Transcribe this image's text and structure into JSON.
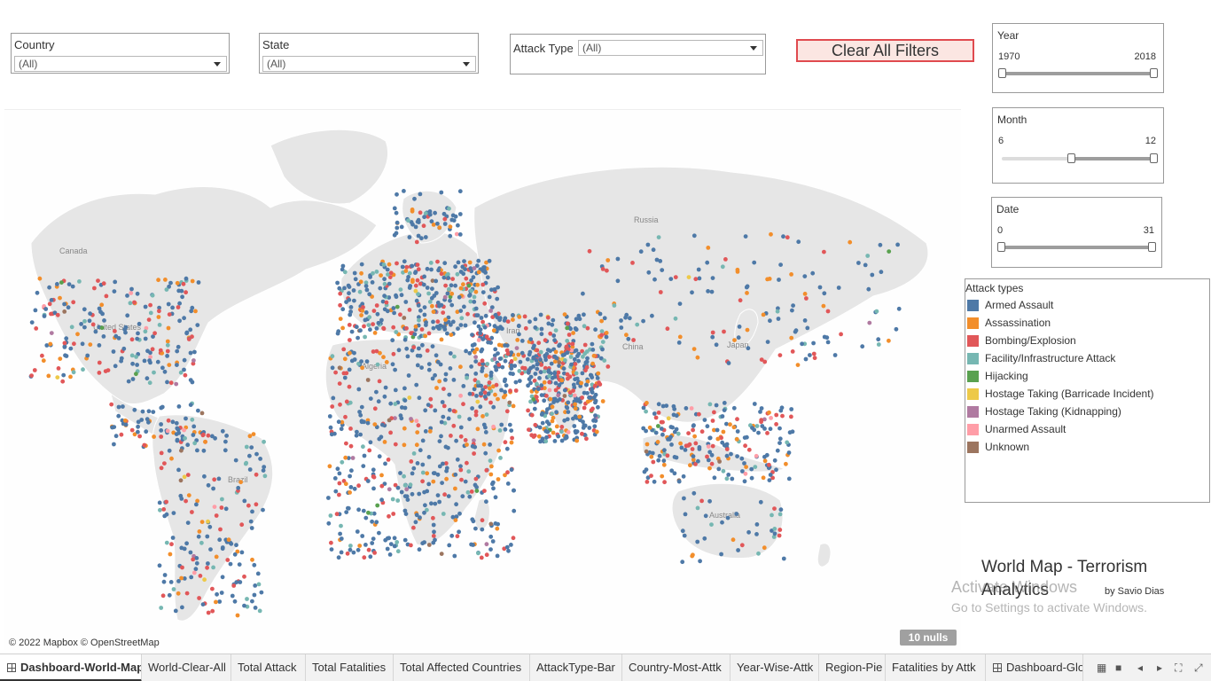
{
  "filters": {
    "country": {
      "label": "Country",
      "value": "(All)"
    },
    "state": {
      "label": "State",
      "value": "(All)"
    },
    "attack_type": {
      "label": "Attack Type",
      "value": "(All)"
    }
  },
  "clear_button": {
    "label": "Clear All Filters",
    "background": "#fbe6e2",
    "border": "#e04a4f"
  },
  "sliders": {
    "year": {
      "title": "Year",
      "min_label": "1970",
      "max_label": "2018",
      "range": [
        1970,
        2018
      ],
      "selected": [
        1970,
        2018
      ]
    },
    "month": {
      "title": "Month",
      "min_label": "6",
      "max_label": "12",
      "range": [
        1,
        12
      ],
      "selected": [
        6,
        12
      ]
    },
    "date": {
      "title": "Date",
      "min_label": "0",
      "max_label": "31",
      "range": [
        0,
        31
      ],
      "selected": [
        0,
        31
      ]
    }
  },
  "map": {
    "credit": "© 2022 Mapbox © OpenStreetMap",
    "nulls": "10 nulls",
    "labels": {
      "canada": "Canada",
      "united_states": "United States",
      "brazil": "Brazil",
      "algeria": "Algeria",
      "russia": "Russia",
      "china": "China",
      "iran": "Iran",
      "australia": "Australia",
      "japan": "Japan"
    }
  },
  "legend": {
    "title": "Attack types",
    "items": [
      {
        "label": "Armed Assault",
        "color": "#4e79a7"
      },
      {
        "label": "Assassination",
        "color": "#f28e2b"
      },
      {
        "label": "Bombing/Explosion",
        "color": "#e15759"
      },
      {
        "label": "Facility/Infrastructure Attack",
        "color": "#76b7b2"
      },
      {
        "label": "Hijacking",
        "color": "#59a14f"
      },
      {
        "label": "Hostage Taking (Barricade Incident)",
        "color": "#edc948"
      },
      {
        "label": "Hostage Taking (Kidnapping)",
        "color": "#b07aa1"
      },
      {
        "label": "Unarmed Assault",
        "color": "#ff9da7"
      },
      {
        "label": "Unknown",
        "color": "#9c755f"
      }
    ]
  },
  "title_block": {
    "title": "World Map - Terrorism Analytics",
    "author": "by Savio Dias"
  },
  "watermark": {
    "title": "Activate Windows",
    "subtitle": "Go to Settings to activate Windows."
  },
  "tabs": [
    {
      "label": "Dashboard-World-Map",
      "icon": "dashboard-icon",
      "active": true
    },
    {
      "label": "World-Clear-All"
    },
    {
      "label": "Total Attack"
    },
    {
      "label": "Total Fatalities"
    },
    {
      "label": "Total Affected Countries"
    },
    {
      "label": "AttackType-Bar"
    },
    {
      "label": "Country-Most-Attk"
    },
    {
      "label": "Year-Wise-Attk"
    },
    {
      "label": "Region-Pie"
    },
    {
      "label": "Fatalities by Attk"
    },
    {
      "label": "Dashboard-Glob",
      "icon": "dashboard-icon"
    }
  ]
}
